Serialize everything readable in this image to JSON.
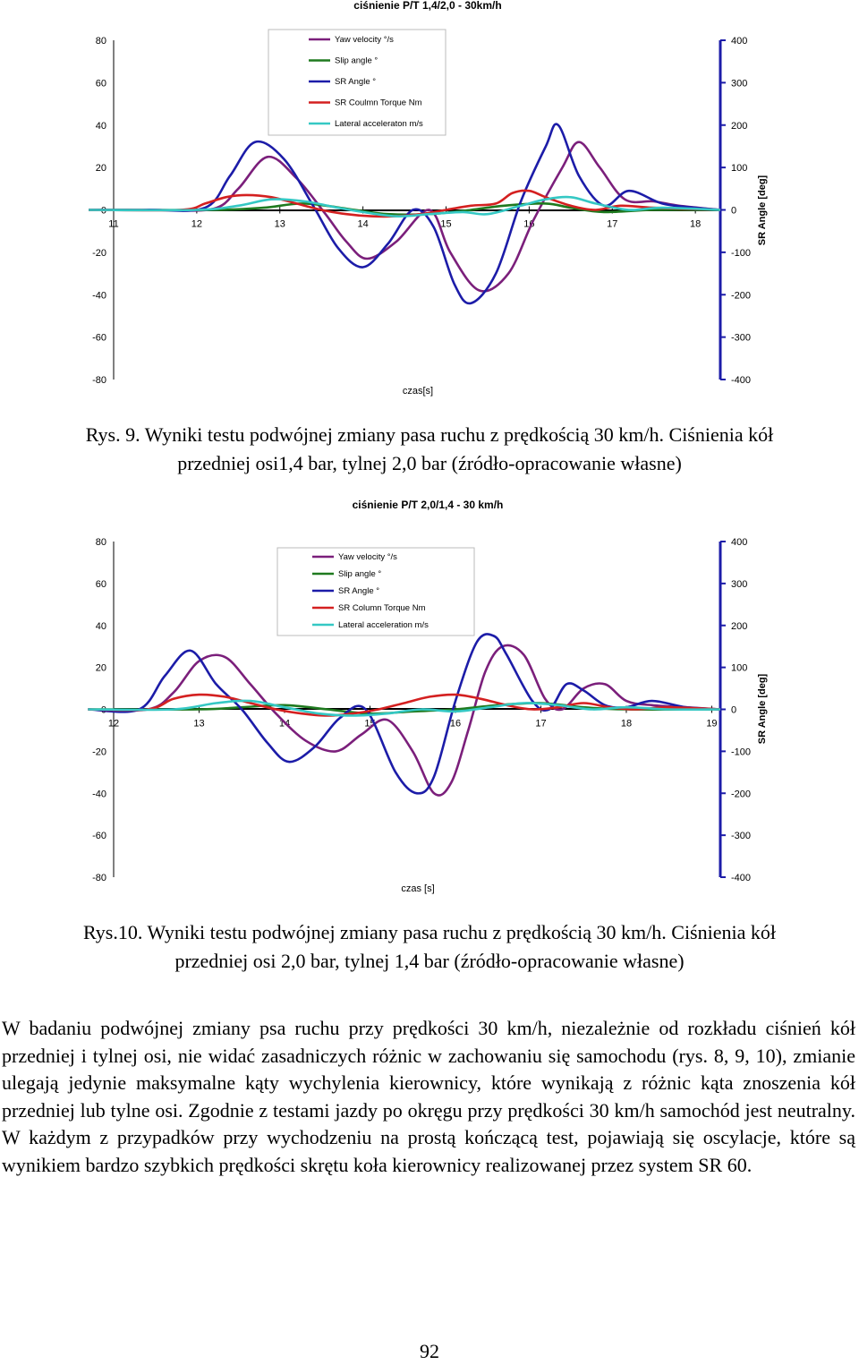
{
  "charts": [
    {
      "title": "ciśnienie P/T 1,4/2,0 - 30km/h",
      "xlabel": "czas[s]",
      "y2label": "SR Angle [deg]",
      "legend": [
        {
          "label": "Yaw velocity °/s",
          "color": "#7b1f7b"
        },
        {
          "label": "Slip angle °",
          "color": "#1f7a1f"
        },
        {
          "label": "SR Angle °",
          "color": "#1c1ca8"
        },
        {
          "label": "SR Coulmn Torque Nm",
          "color": "#d42020"
        },
        {
          "label": "Lateral acceleraton m/s",
          "color": "#35c8c4"
        }
      ],
      "y1ticks": [
        "80",
        "60",
        "40",
        "20",
        "0",
        "-20",
        "-40",
        "-60",
        "-80"
      ],
      "y2ticks": [
        "400",
        "300",
        "200",
        "100",
        "0",
        "-100",
        "-200",
        "-300",
        "-400"
      ],
      "xticks": [
        "11",
        "12",
        "13",
        "14",
        "15",
        "16",
        "17",
        "18"
      ]
    },
    {
      "title": "ciśnienie P/T 2,0/1,4 - 30 km/h",
      "xlabel": "czas [s]",
      "y2label": "SR Angle [deg]",
      "legend": [
        {
          "label": "Yaw velocity °/s",
          "color": "#7b1f7b"
        },
        {
          "label": "Slip angle °",
          "color": "#1f7a1f"
        },
        {
          "label": "SR Angle °",
          "color": "#1c1ca8"
        },
        {
          "label": "SR Column Torque Nm",
          "color": "#d42020"
        },
        {
          "label": "Lateral acceleration m/s",
          "color": "#35c8c4"
        }
      ],
      "y1ticks": [
        "80",
        "60",
        "40",
        "20",
        "0",
        "-20",
        "-40",
        "-60",
        "-80"
      ],
      "y2ticks": [
        "400",
        "300",
        "200",
        "100",
        "0",
        "-100",
        "-200",
        "-300",
        "-400"
      ],
      "xticks": [
        "12",
        "13",
        "14",
        "15",
        "16",
        "17",
        "18",
        "19"
      ]
    }
  ],
  "chart_data": [
    {
      "type": "line",
      "title": "ciśnienie P/T 1,4/2,0 - 30km/h",
      "xlabel": "czas[s]",
      "ylabel": "",
      "y2label": "SR Angle [deg]",
      "xlim": [
        11,
        18.3
      ],
      "ylim": [
        -80,
        80
      ],
      "y2lim": [
        -400,
        400
      ],
      "grid": false,
      "legend_position": "top-center",
      "series": [
        {
          "name": "Yaw velocity °/s",
          "axis": "left",
          "color": "#7b1f7b",
          "x": [
            10.7,
            11.5,
            12.2,
            12.5,
            12.85,
            13.2,
            13.55,
            13.8,
            14.05,
            14.4,
            14.8,
            15.05,
            15.4,
            15.75,
            16.05,
            16.4,
            16.6,
            16.85,
            17.15,
            17.5,
            17.8,
            18.3
          ],
          "y": [
            0,
            0,
            0.5,
            10,
            25,
            15,
            -2,
            -15,
            -23,
            -15,
            0,
            -20,
            -38,
            -30,
            -5,
            20,
            32,
            20,
            5,
            4,
            2,
            0
          ]
        },
        {
          "name": "Slip angle °",
          "axis": "left",
          "color": "#1f7a1f",
          "x": [
            10.7,
            12.2,
            12.8,
            13.3,
            13.9,
            14.3,
            14.8,
            15.3,
            15.7,
            16.2,
            16.5,
            16.9,
            17.5,
            18.3
          ],
          "y": [
            0,
            0,
            1,
            3,
            0,
            -2,
            -2,
            0,
            2,
            3,
            1,
            -1,
            0,
            0
          ]
        },
        {
          "name": "SR Angle °",
          "axis": "right",
          "color": "#1c1ca8",
          "x": [
            10.7,
            11.4,
            12.1,
            12.4,
            12.7,
            13.05,
            13.4,
            13.7,
            14.0,
            14.3,
            14.6,
            14.85,
            15.1,
            15.3,
            15.6,
            15.9,
            16.2,
            16.35,
            16.6,
            16.9,
            17.2,
            17.6,
            18.0,
            18.3
          ],
          "y": [
            0,
            0,
            5,
            80,
            160,
            120,
            10,
            -90,
            -135,
            -80,
            0,
            -40,
            -175,
            -220,
            -150,
            20,
            150,
            200,
            80,
            10,
            45,
            15,
            5,
            0
          ]
        },
        {
          "name": "SR Coulmn Torque Nm",
          "axis": "left",
          "color": "#d42020",
          "x": [
            10.7,
            11.8,
            12.1,
            12.35,
            12.6,
            12.9,
            13.2,
            13.5,
            13.8,
            14.1,
            14.4,
            14.7,
            15.0,
            15.3,
            15.6,
            15.8,
            16.0,
            16.2,
            16.5,
            16.8,
            17.1,
            17.5,
            18.3
          ],
          "y": [
            0,
            0,
            3,
            6,
            7,
            6,
            3,
            0,
            -2,
            -3,
            -3,
            -2,
            0,
            2,
            3,
            8,
            9,
            6,
            2,
            0,
            2,
            1,
            0
          ]
        },
        {
          "name": "Lateral acceleraton m/s",
          "axis": "left",
          "color": "#35c8c4",
          "x": [
            10.7,
            12.0,
            12.5,
            12.9,
            13.3,
            13.7,
            14.0,
            14.4,
            14.8,
            15.2,
            15.5,
            15.9,
            16.2,
            16.5,
            16.8,
            17.2,
            17.6,
            18.3
          ],
          "y": [
            0,
            0,
            2,
            5,
            4,
            1,
            -1,
            -3,
            -2,
            -1,
            -2,
            2,
            5,
            6,
            3,
            0,
            1,
            0
          ]
        }
      ]
    },
    {
      "type": "line",
      "title": "ciśnienie P/T 2,0/1,4 - 30 km/h",
      "xlabel": "czas [s]",
      "ylabel": "",
      "y2label": "SR Angle [deg]",
      "xlim": [
        12,
        19.1
      ],
      "ylim": [
        -80,
        80
      ],
      "y2lim": [
        -400,
        400
      ],
      "grid": false,
      "legend_position": "top-center",
      "series": [
        {
          "name": "Yaw velocity °/s",
          "axis": "left",
          "color": "#7b1f7b",
          "x": [
            11.7,
            12.4,
            12.7,
            13.0,
            13.3,
            13.6,
            13.9,
            14.25,
            14.6,
            14.9,
            15.2,
            15.5,
            15.75,
            15.95,
            16.15,
            16.35,
            16.55,
            16.8,
            17.05,
            17.25,
            17.5,
            17.75,
            18.0,
            18.3,
            18.7,
            19.1
          ],
          "y": [
            0,
            0,
            8,
            23,
            25,
            12,
            -2,
            -15,
            -20,
            -12,
            -5,
            -20,
            -40,
            -35,
            -10,
            18,
            30,
            26,
            5,
            0,
            10,
            12,
            4,
            2,
            1,
            0
          ]
        },
        {
          "name": "Slip angle °",
          "axis": "left",
          "color": "#1f7a1f",
          "x": [
            11.7,
            13.0,
            13.5,
            14.0,
            14.5,
            15.0,
            15.5,
            16.0,
            16.5,
            17.0,
            17.5,
            18.0,
            19.1
          ],
          "y": [
            0,
            0,
            1,
            2,
            0,
            -2,
            -1,
            0,
            2,
            3,
            1,
            0,
            0
          ]
        },
        {
          "name": "SR Angle °",
          "axis": "right",
          "color": "#1c1ca8",
          "x": [
            11.7,
            12.3,
            12.6,
            12.9,
            13.2,
            13.5,
            13.8,
            14.05,
            14.35,
            14.65,
            14.95,
            15.3,
            15.55,
            15.75,
            16.0,
            16.25,
            16.45,
            16.6,
            16.9,
            17.1,
            17.3,
            17.5,
            17.75,
            18.0,
            18.3,
            18.7,
            19.1
          ],
          "y": [
            0,
            0,
            80,
            140,
            60,
            0,
            -80,
            -125,
            -90,
            -20,
            0,
            -150,
            -200,
            -160,
            20,
            160,
            175,
            130,
            20,
            0,
            60,
            45,
            10,
            5,
            20,
            5,
            0
          ]
        },
        {
          "name": "SR Column Torque Nm",
          "axis": "left",
          "color": "#d42020",
          "x": [
            11.7,
            12.4,
            12.7,
            13.0,
            13.3,
            13.6,
            13.9,
            14.2,
            14.5,
            14.8,
            15.1,
            15.4,
            15.7,
            16.0,
            16.3,
            16.6,
            16.9,
            17.2,
            17.5,
            17.8,
            18.1,
            18.5,
            19.1
          ],
          "y": [
            0,
            0,
            5,
            7,
            6,
            3,
            0,
            -2,
            -3,
            -2,
            0,
            3,
            6,
            7,
            5,
            2,
            0,
            1,
            3,
            1,
            0,
            1,
            0
          ]
        },
        {
          "name": "Lateral acceleration m/s",
          "axis": "left",
          "color": "#35c8c4",
          "x": [
            11.7,
            12.7,
            13.2,
            13.6,
            14.0,
            14.4,
            14.8,
            15.2,
            15.6,
            16.0,
            16.4,
            16.8,
            17.2,
            17.6,
            18.0,
            18.5,
            19.1
          ],
          "y": [
            0,
            0,
            3,
            4,
            1,
            -2,
            -3,
            -2,
            0,
            -1,
            1,
            3,
            2,
            0,
            1,
            0,
            0
          ]
        }
      ]
    }
  ],
  "captions": [
    {
      "line1": "Rys. 9. Wyniki testu podwójnej zmiany pasa ruchu z prędkością 30 km/h. Ciśnienia kół",
      "line2": "przedniej osi1,4 bar, tylnej 2,0 bar (źródło-opracowanie własne)"
    },
    {
      "line1": "Rys.10. Wyniki testu podwójnej zmiany pasa ruchu z prędkością 30 km/h. Ciśnienia kół",
      "line2": "przedniej osi 2,0 bar, tylnej 1,4 bar (źródło-opracowanie własne)"
    }
  ],
  "body_text": "W badaniu podwójnej zmiany psa ruchu przy prędkości 30 km/h, niezależnie od rozkładu ciśnień kół przedniej i tylnej osi, nie widać zasadniczych różnic w zachowaniu się samochodu (rys. 8, 9, 10), zmianie ulegają jedynie maksymalne kąty wychylenia kierownicy, które wynikają z różnic kąta znoszenia  kół przedniej lub tylne osi. Zgodnie z testami jazdy po okręgu przy prędkości 30 km/h samochód jest neutralny. W każdym z przypadków przy wychodzeniu na prostą kończącą test, pojawiają się oscylacje, które są wynikiem bardzo szybkich prędkości skrętu koła kierownicy realizowanej przez system SR 60.",
  "page_number": "92"
}
